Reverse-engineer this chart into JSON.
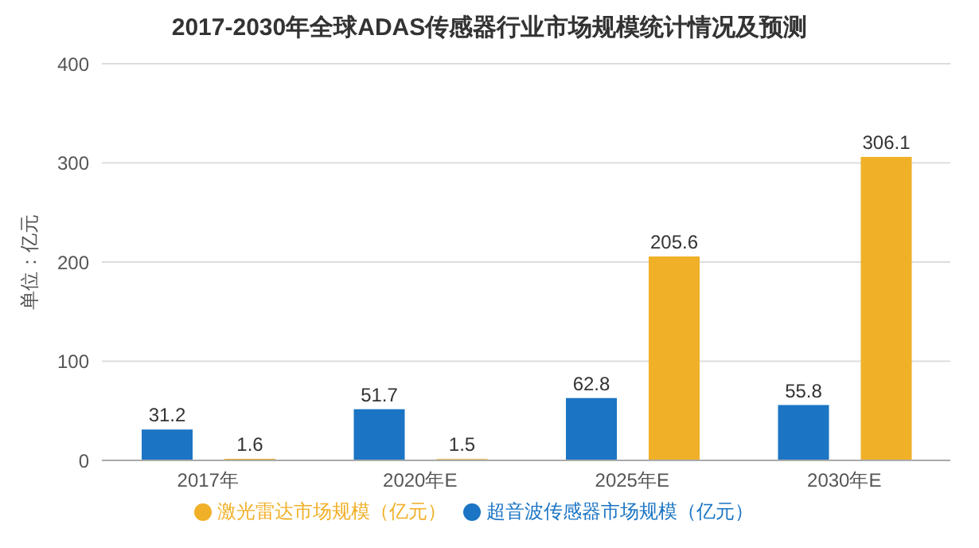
{
  "chart_data": {
    "type": "bar",
    "title": "2017-2030年全球ADAS传感器行业市场规模统计情况及预测",
    "ylabel": "单位：亿元",
    "categories": [
      "2017年",
      "2020年E",
      "2025年E",
      "2030年E"
    ],
    "series": [
      {
        "name": "超音波传感器市场规模（亿元）",
        "color": "#1b75c4",
        "values": [
          31.2,
          51.7,
          62.8,
          55.8
        ]
      },
      {
        "name": "激光雷达市场规模（亿元）",
        "color": "#f0b028",
        "values": [
          1.6,
          1.5,
          205.6,
          306.1
        ]
      }
    ],
    "ylim": [
      0,
      400
    ],
    "yticks": [
      0,
      100,
      200,
      300,
      400
    ],
    "grid": "y",
    "legend": "bottom",
    "data_labels": true
  }
}
